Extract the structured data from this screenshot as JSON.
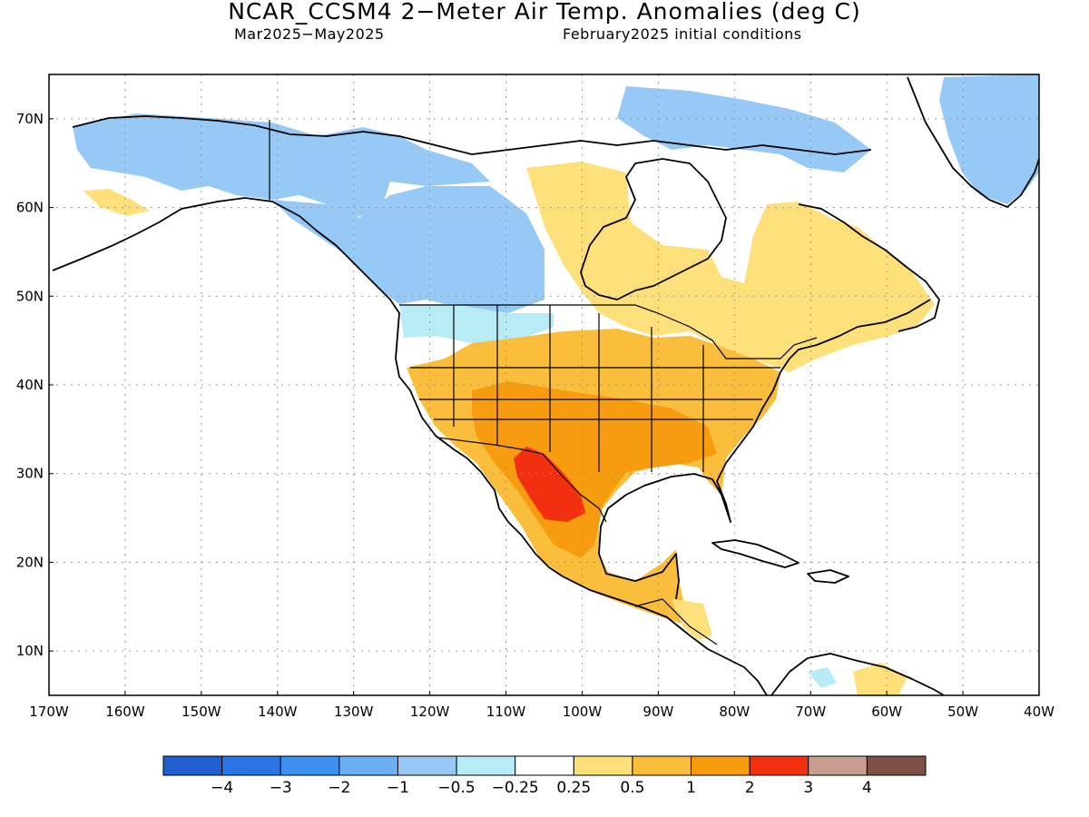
{
  "title": "NCAR_CCSM4 2−Meter Air Temp. Anomalies (deg C)",
  "subtitle_left": "Mar2025−May2025",
  "subtitle_right": "February2025 initial conditions",
  "map": {
    "lon_range": [
      -170,
      -40
    ],
    "lat_range": [
      5,
      75
    ],
    "lat_ticks": [
      "70N",
      "60N",
      "50N",
      "40N",
      "30N",
      "20N",
      "10N"
    ],
    "lon_ticks": [
      "170W",
      "160W",
      "150W",
      "140W",
      "130W",
      "120W",
      "110W",
      "100W",
      "90W",
      "80W",
      "70W",
      "60W",
      "50W",
      "40W"
    ],
    "grid": "dotted",
    "regions": [
      {
        "name": "alaska-yukon",
        "category": "-1"
      },
      {
        "name": "western-canada",
        "category": "-0.5"
      },
      {
        "name": "pacific-northwest",
        "category": "-0.25"
      },
      {
        "name": "baffin-greenland-coast",
        "category": "-0.5"
      },
      {
        "name": "greenland",
        "category": "-1"
      },
      {
        "name": "eastern-canada",
        "category": "0.5"
      },
      {
        "name": "united-states",
        "category": "1"
      },
      {
        "name": "southwest-mexico",
        "category": "2"
      },
      {
        "name": "northern-mexico",
        "category": "3"
      },
      {
        "name": "central-america",
        "category": "0.5"
      },
      {
        "name": "caribbean-south",
        "category": "0.25"
      },
      {
        "name": "southwest-alaska",
        "category": "0.5"
      }
    ]
  },
  "colorbar": {
    "colors": [
      "#1f5fcf",
      "#2a75e6",
      "#3d8ff0",
      "#6ab0f5",
      "#97c9f7",
      "#b7ecf7",
      "#ffffff",
      "#fde07a",
      "#fbbd3c",
      "#f79c0f",
      "#f2300f",
      "#c89e90",
      "#7e5045"
    ],
    "labels": [
      "−4",
      "−3",
      "−2",
      "−1",
      "−0.5",
      "−0.25",
      "0.25",
      "0.5",
      "1",
      "2",
      "3",
      "4"
    ]
  }
}
